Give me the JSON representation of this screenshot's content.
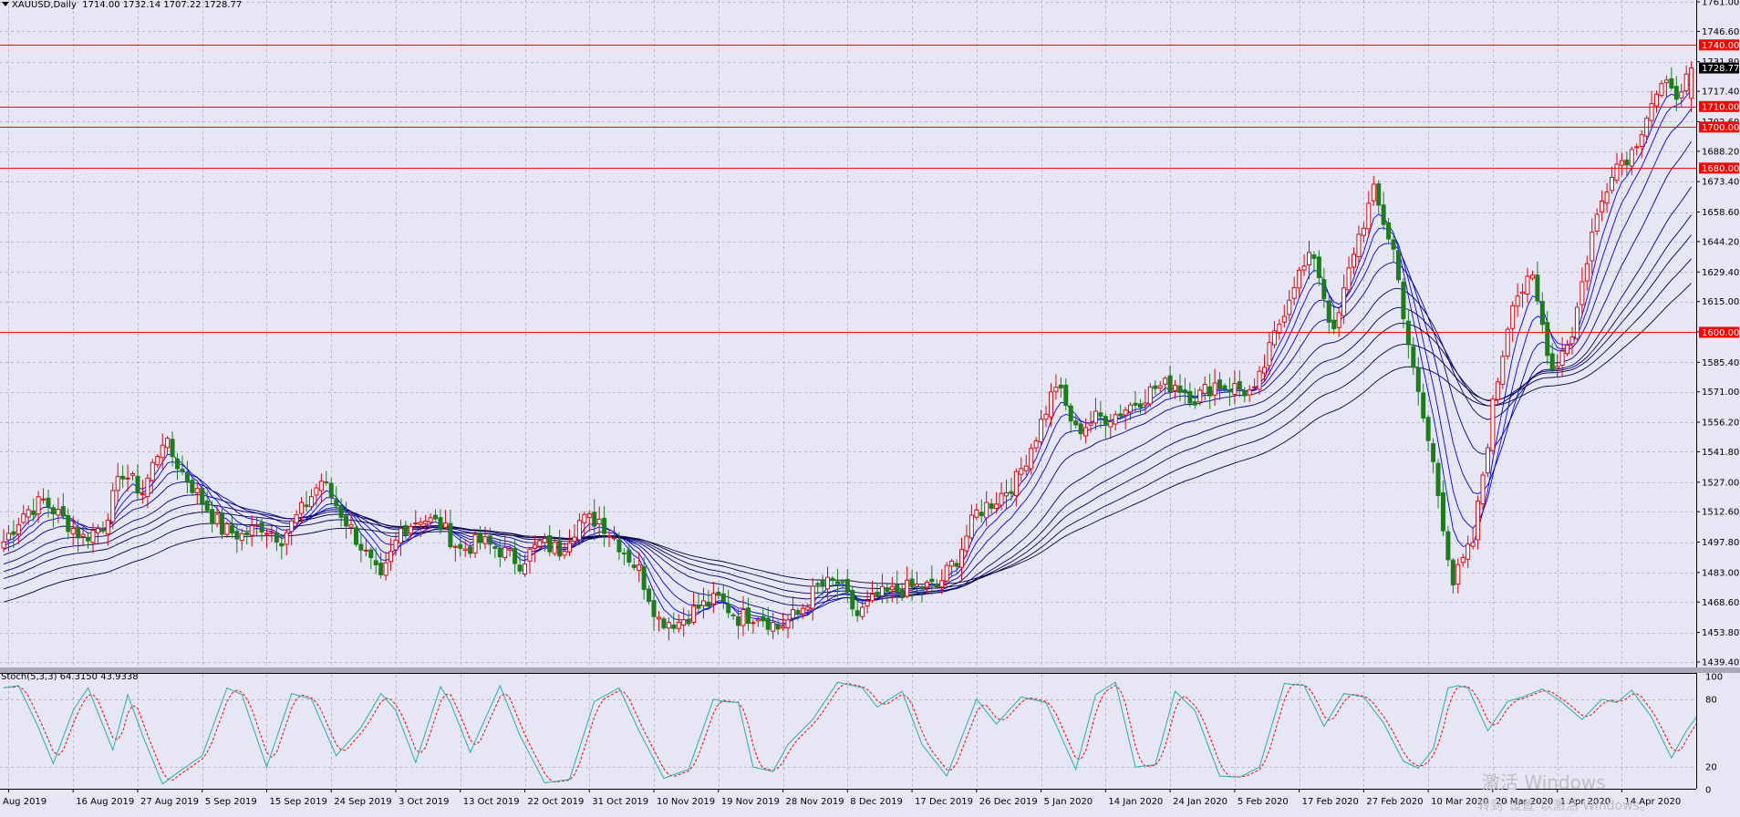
{
  "chart": {
    "symbol": "XAUUSD,Daily",
    "ohlc": [
      "1714.00",
      "1732.14",
      "1707.22",
      "1728.77"
    ]
  },
  "price_axis": {
    "labels": [
      "1761.00",
      "1746.60",
      "1731.80",
      "1717.40",
      "1702.60",
      "1688.20",
      "1673.40",
      "1658.60",
      "1644.20",
      "1629.40",
      "1615.00",
      "1600.20",
      "1585.40",
      "1571.00",
      "1556.20",
      "1541.80",
      "1527.00",
      "1512.60",
      "1497.80",
      "1483.00",
      "1468.60",
      "1453.80",
      "1439.40"
    ],
    "ylim": [
      1439.4,
      1761.0
    ],
    "current_price": "1728.77"
  },
  "levels": [
    "1740.00",
    "1710.00",
    "1700.00",
    "1680.00",
    "1600.00"
  ],
  "level_color": "#ff0000",
  "date_axis": [
    "Aug 2019",
    "16 Aug 2019",
    "27 Aug 2019",
    "5 Sep 2019",
    "15 Sep 2019",
    "24 Sep 2019",
    "3 Oct 2019",
    "13 Oct 2019",
    "22 Oct 2019",
    "31 Oct 2019",
    "10 Nov 2019",
    "19 Nov 2019",
    "28 Nov 2019",
    "8 Dec 2019",
    "17 Dec 2019",
    "26 Dec 2019",
    "5 Jan 2020",
    "14 Jan 2020",
    "24 Jan 2020",
    "5 Feb 2020",
    "17 Feb 2020",
    "27 Feb 2020",
    "10 Mar 2020",
    "20 Mar 2020",
    "1 Apr 2020",
    "14 Apr 2020"
  ],
  "stochastic": {
    "label": "Stoch(5,3,3)",
    "main": "64.3150",
    "signal": "43.9338",
    "levels": [
      "100",
      "80",
      "20",
      "0"
    ]
  },
  "watermark": {
    "title": "激活 Windows",
    "subtitle": "转到\"设置\"以激活 Windows。"
  },
  "chart_data": {
    "type": "candlestick",
    "price_range": [
      1439.4,
      1761.0
    ],
    "horizontal_levels": [
      1740,
      1710,
      1700,
      1680,
      1600
    ],
    "anchors": [
      [
        0,
        1498
      ],
      [
        4,
        1512
      ],
      [
        8,
        1518
      ],
      [
        12,
        1509
      ],
      [
        16,
        1500
      ],
      [
        20,
        1506
      ],
      [
        24,
        1532
      ],
      [
        28,
        1522
      ],
      [
        32,
        1548
      ],
      [
        36,
        1532
      ],
      [
        40,
        1518
      ],
      [
        44,
        1504
      ],
      [
        48,
        1501
      ],
      [
        52,
        1506
      ],
      [
        56,
        1500
      ],
      [
        60,
        1513
      ],
      [
        64,
        1528
      ],
      [
        68,
        1512
      ],
      [
        72,
        1496
      ],
      [
        76,
        1478
      ],
      [
        80,
        1504
      ],
      [
        84,
        1510
      ],
      [
        88,
        1506
      ],
      [
        92,
        1494
      ],
      [
        96,
        1498
      ],
      [
        100,
        1494
      ],
      [
        104,
        1488
      ],
      [
        108,
        1497
      ],
      [
        112,
        1494
      ],
      [
        116,
        1508
      ],
      [
        120,
        1509
      ],
      [
        124,
        1497
      ],
      [
        128,
        1484
      ],
      [
        132,
        1460
      ],
      [
        136,
        1459
      ],
      [
        140,
        1466
      ],
      [
        144,
        1470
      ],
      [
        148,
        1461
      ],
      [
        152,
        1463
      ],
      [
        156,
        1456
      ],
      [
        160,
        1463
      ],
      [
        164,
        1476
      ],
      [
        168,
        1478
      ],
      [
        172,
        1462
      ],
      [
        176,
        1471
      ],
      [
        180,
        1474
      ],
      [
        184,
        1476
      ],
      [
        188,
        1476
      ],
      [
        192,
        1490
      ],
      [
        196,
        1512
      ],
      [
        200,
        1519
      ],
      [
        204,
        1528
      ],
      [
        208,
        1550
      ],
      [
        212,
        1575
      ],
      [
        216,
        1552
      ],
      [
        220,
        1558
      ],
      [
        224,
        1560
      ],
      [
        228,
        1566
      ],
      [
        232,
        1573
      ],
      [
        236,
        1575
      ],
      [
        240,
        1568
      ],
      [
        244,
        1575
      ],
      [
        248,
        1573
      ],
      [
        252,
        1570
      ],
      [
        256,
        1598
      ],
      [
        260,
        1625
      ],
      [
        264,
        1638
      ],
      [
        268,
        1598
      ],
      [
        272,
        1640
      ],
      [
        276,
        1668
      ],
      [
        280,
        1640
      ],
      [
        284,
        1580
      ],
      [
        288,
        1536
      ],
      [
        292,
        1478
      ],
      [
        296,
        1498
      ],
      [
        300,
        1564
      ],
      [
        304,
        1617
      ],
      [
        308,
        1625
      ],
      [
        312,
        1582
      ],
      [
        316,
        1600
      ],
      [
        320,
        1648
      ],
      [
        324,
        1680
      ],
      [
        328,
        1688
      ],
      [
        332,
        1712
      ],
      [
        336,
        1722
      ],
      [
        338,
        1714
      ],
      [
        340,
        1728.77
      ]
    ],
    "stoch_anchors": [
      [
        0,
        90
      ],
      [
        3,
        92
      ],
      [
        7,
        55
      ],
      [
        10,
        23
      ],
      [
        14,
        70
      ],
      [
        17,
        90
      ],
      [
        22,
        35
      ],
      [
        25,
        84
      ],
      [
        28,
        48
      ],
      [
        32,
        5
      ],
      [
        36,
        18
      ],
      [
        40,
        30
      ],
      [
        45,
        90
      ],
      [
        48,
        84
      ],
      [
        53,
        20
      ],
      [
        58,
        85
      ],
      [
        62,
        80
      ],
      [
        67,
        30
      ],
      [
        72,
        55
      ],
      [
        76,
        85
      ],
      [
        79,
        70
      ],
      [
        83,
        24
      ],
      [
        88,
        91
      ],
      [
        90,
        77
      ],
      [
        94,
        33
      ],
      [
        100,
        92
      ],
      [
        104,
        48
      ],
      [
        109,
        6
      ],
      [
        114,
        9
      ],
      [
        119,
        78
      ],
      [
        124,
        90
      ],
      [
        128,
        52
      ],
      [
        133,
        10
      ],
      [
        138,
        18
      ],
      [
        143,
        80
      ],
      [
        145,
        78
      ],
      [
        148,
        77
      ],
      [
        151,
        20
      ],
      [
        155,
        16
      ],
      [
        158,
        40
      ],
      [
        163,
        62
      ],
      [
        168,
        95
      ],
      [
        173,
        90
      ],
      [
        176,
        73
      ],
      [
        181,
        87
      ],
      [
        185,
        40
      ],
      [
        190,
        12
      ],
      [
        196,
        80
      ],
      [
        200,
        58
      ],
      [
        205,
        82
      ],
      [
        210,
        77
      ],
      [
        216,
        18
      ],
      [
        220,
        84
      ],
      [
        224,
        95
      ],
      [
        228,
        20
      ],
      [
        232,
        22
      ],
      [
        236,
        87
      ],
      [
        240,
        70
      ],
      [
        245,
        12
      ],
      [
        249,
        11
      ],
      [
        253,
        20
      ],
      [
        258,
        94
      ],
      [
        262,
        92
      ],
      [
        266,
        56
      ],
      [
        270,
        85
      ],
      [
        274,
        82
      ],
      [
        278,
        59
      ],
      [
        282,
        25
      ],
      [
        285,
        19
      ],
      [
        288,
        36
      ],
      [
        291,
        90
      ],
      [
        293,
        92
      ],
      [
        295,
        90
      ],
      [
        299,
        52
      ],
      [
        303,
        78
      ],
      [
        306,
        82
      ],
      [
        310,
        89
      ],
      [
        314,
        77
      ],
      [
        318,
        62
      ],
      [
        322,
        80
      ],
      [
        325,
        77
      ],
      [
        328,
        88
      ],
      [
        332,
        64
      ],
      [
        336,
        28
      ],
      [
        339,
        52
      ],
      [
        341,
        64
      ]
    ]
  }
}
